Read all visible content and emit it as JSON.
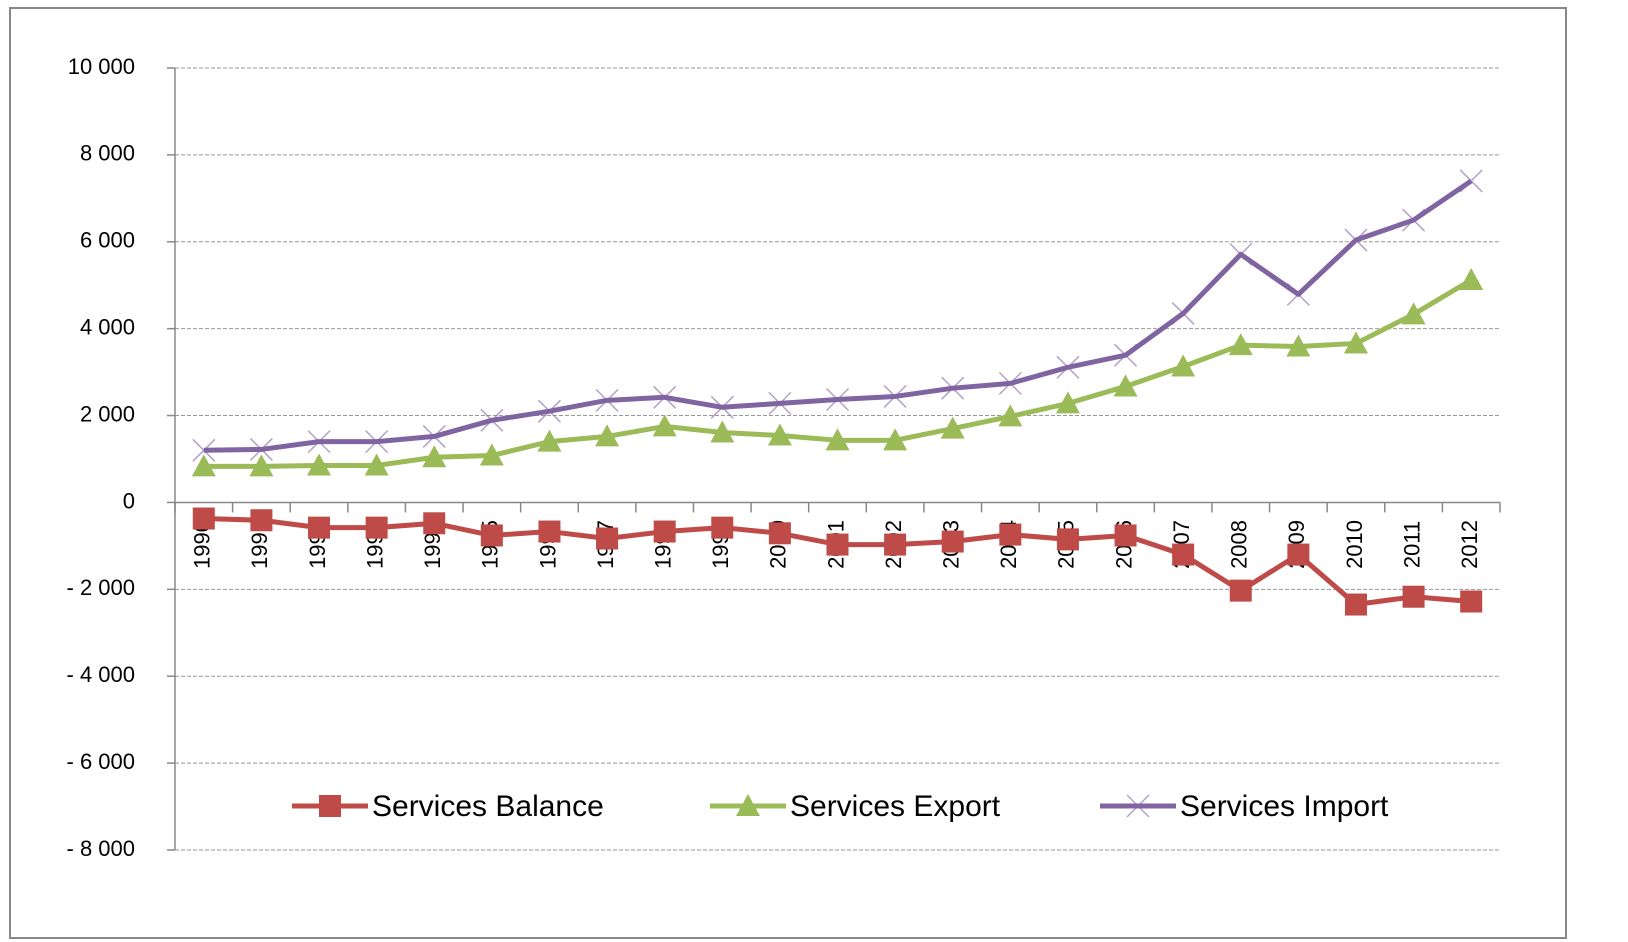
{
  "chart_data": {
    "type": "line",
    "categories": [
      "1990",
      "1991",
      "1992",
      "1993",
      "1994",
      "1995",
      "1996",
      "1997",
      "1998",
      "1999",
      "2000",
      "2001",
      "2002",
      "2003",
      "2004",
      "2005",
      "2006",
      "2007",
      "2008",
      "2009",
      "2010",
      "2011",
      "2012"
    ],
    "series": [
      {
        "name": "Services Balance",
        "color": "#be4b48",
        "marker": "square",
        "values": [
          -370,
          -410,
          -580,
          -580,
          -480,
          -760,
          -670,
          -830,
          -670,
          -580,
          -710,
          -970,
          -970,
          -900,
          -740,
          -850,
          -760,
          -1200,
          -2030,
          -1200,
          -2350,
          -2170,
          -2280
        ]
      },
      {
        "name": "Services Export",
        "color": "#9bbb59",
        "marker": "triangle",
        "values": [
          830,
          830,
          850,
          850,
          1040,
          1080,
          1400,
          1520,
          1750,
          1610,
          1540,
          1430,
          1430,
          1700,
          1980,
          2280,
          2670,
          3130,
          3620,
          3590,
          3660,
          4330,
          5120
        ]
      },
      {
        "name": "Services Import",
        "color": "#8064a2",
        "marker": "cross",
        "values": [
          1200,
          1220,
          1400,
          1400,
          1520,
          1890,
          2100,
          2350,
          2420,
          2190,
          2280,
          2370,
          2440,
          2630,
          2740,
          3110,
          3390,
          4350,
          5710,
          4790,
          6040,
          6500,
          7400
        ]
      }
    ],
    "ylim": [
      -8000,
      10000
    ],
    "yticks": [
      {
        "value": -8000,
        "label": "- 8 000"
      },
      {
        "value": -6000,
        "label": "- 6 000"
      },
      {
        "value": -4000,
        "label": "- 4 000"
      },
      {
        "value": -2000,
        "label": "- 2 000"
      },
      0,
      {
        "value": 2000,
        "label": "2 000"
      },
      {
        "value": 4000,
        "label": "4 000"
      },
      {
        "value": 6000,
        "label": "6 000"
      },
      {
        "value": 8000,
        "label": "8 000"
      },
      {
        "value": 10000,
        "label": "10 000"
      }
    ],
    "grid": true,
    "legend": "bottom"
  }
}
